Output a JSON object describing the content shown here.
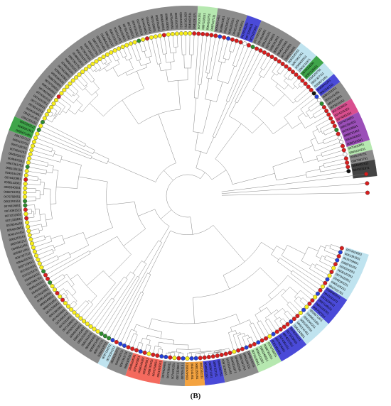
{
  "figure": {
    "panel_label": "(B)",
    "colors": {
      "band_gray": "#8c8c8c",
      "band_light_blue": "#bfe3ef",
      "band_green": "#3fa54a",
      "band_light_green": "#b6e8b0",
      "band_blue": "#4a4ad8",
      "band_purple": "#9b4fb8",
      "band_pink": "#d94f8f",
      "band_orange": "#f4a340",
      "band_salmon": "#f46a5e",
      "band_yellow": "#f3ef6a",
      "band_dark": "#444444",
      "node_red": "#d81e1e",
      "node_yellow": "#f7ee1a",
      "node_blue": "#2440d8",
      "node_green": "#2e8b2e",
      "node_black": "#111111",
      "node_white": "#ffffff",
      "branch": "#777777"
    },
    "leaf_labels_visible": [
      "0074024651",
      "0061391551",
      "0076758651",
      "0088781951",
      "0006340551",
      "0096143361",
      "0079420951",
      "0049164231",
      "0065105151",
      "0067361751",
      "0049402511",
      "0043231971",
      "0073024151",
      "0097128151",
      "0064103751",
      "0097327111",
      "0055671451",
      "0049641351",
      "0062342211",
      "0081253151",
      "0042141451",
      "0054243651",
      "0078241151",
      "0071328631",
      "0074231551",
      "0074361511"
    ]
  }
}
